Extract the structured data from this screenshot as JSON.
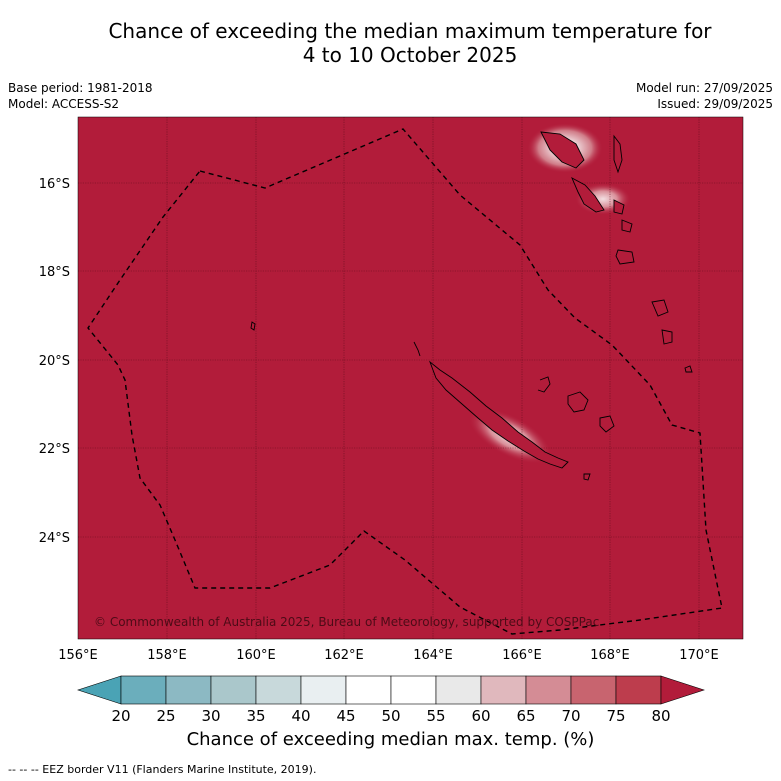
{
  "title": {
    "line1": "Chance of exceeding the median maximum temperature for",
    "line2": "4 to 10 October 2025"
  },
  "meta": {
    "base_period": "Base period: 1981-2018",
    "model": "Model: ACCESS-S2",
    "model_run": "Model run: 27/09/2025",
    "issued": "Issued: 29/09/2025"
  },
  "map": {
    "background_color": "#b21c3a",
    "lon_ticks": [
      "156°E",
      "158°E",
      "160°E",
      "162°E",
      "164°E",
      "166°E",
      "168°E",
      "170°E"
    ],
    "lat_ticks": [
      "16°S",
      "18°S",
      "20°S",
      "22°S",
      "24°S"
    ],
    "copyright": "© Commonwealth of Australia 2025, Bureau of Meteorology, supported by COSPPac"
  },
  "colorbar": {
    "labels": [
      "20",
      "25",
      "30",
      "35",
      "40",
      "45",
      "50",
      "55",
      "60",
      "65",
      "70",
      "75",
      "80"
    ],
    "colors": [
      "#4aa3b5",
      "#6baebc",
      "#8cb9c3",
      "#aac7cb",
      "#c8d9db",
      "#e9eff1",
      "#ffffff",
      "#ffffff",
      "#e9e9e9",
      "#e0b8bd",
      "#d48c95",
      "#c8646f",
      "#bd3d4d",
      "#b21c3a"
    ],
    "title": "Chance of exceeding median max. temp. (%)"
  },
  "footer": "--  --  -- EEZ border V11 (Flanders Marine Institute, 2019)."
}
